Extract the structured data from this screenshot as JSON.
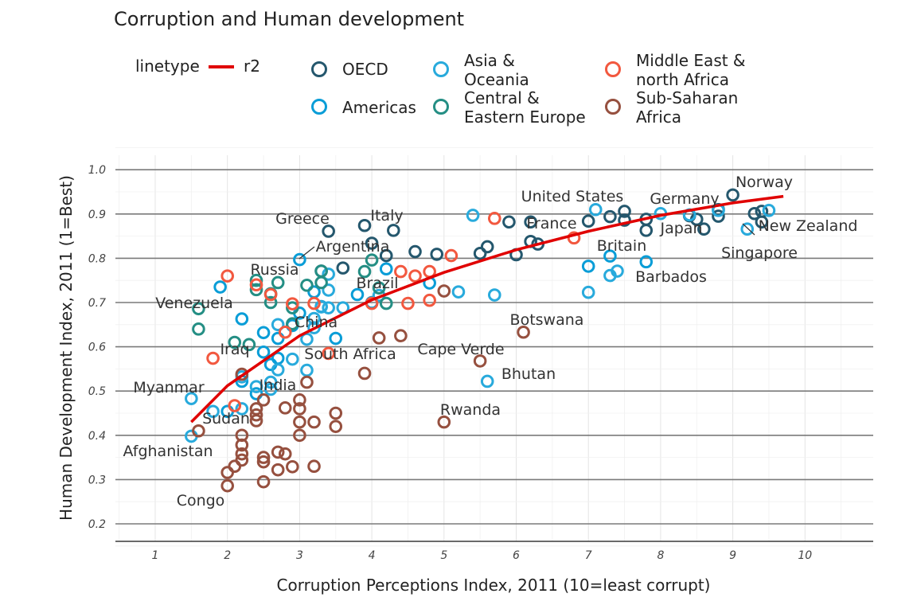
{
  "chart_data": {
    "type": "scatter",
    "title": "Corruption and Human development",
    "xlabel": "Corruption Perceptions Index, 2011 (10=least corrupt)",
    "ylabel": "Human Development Index, 2011 (1=Best)",
    "xlim": [
      0.5,
      11
    ],
    "ylim": [
      0.15,
      1.05
    ],
    "xticks": [
      "1",
      "2",
      "3",
      "4",
      "5",
      "6",
      "7",
      "8",
      "9",
      "10"
    ],
    "yticks": [
      "0.2",
      "0.3",
      "0.4",
      "0.5",
      "0.6",
      "0.7",
      "0.8",
      "0.9",
      "1.0"
    ],
    "legend": {
      "linetype_title": "linetype",
      "linetype_entry": "r2",
      "line_color": "#e00000",
      "regions": [
        {
          "key": "OECD",
          "label": "OECD",
          "color": "#24576d"
        },
        {
          "key": "Americas",
          "label": "Americas",
          "color": "#099dd7"
        },
        {
          "key": "Asia",
          "label": "Asia &\nOceania",
          "color": "#28aadc"
        },
        {
          "key": "CEE",
          "label": "Central &\nEastern Europe",
          "color": "#248e84"
        },
        {
          "key": "MENA",
          "label": "Middle East &\nnorth Africa",
          "color": "#f2583f"
        },
        {
          "key": "SSA",
          "label": "Sub-Saharan\nAfrica",
          "color": "#96503f"
        }
      ]
    },
    "series": [
      {
        "name": "OECD",
        "points": [
          [
            3.4,
            0.861
          ],
          [
            3.9,
            0.874
          ],
          [
            4.3,
            0.863
          ],
          [
            4.0,
            0.834
          ],
          [
            4.2,
            0.806
          ],
          [
            4.6,
            0.815
          ],
          [
            4.9,
            0.809
          ],
          [
            5.5,
            0.811
          ],
          [
            5.6,
            0.826
          ],
          [
            6.0,
            0.808
          ],
          [
            6.2,
            0.838
          ],
          [
            6.3,
            0.832
          ],
          [
            5.9,
            0.882
          ],
          [
            6.2,
            0.882
          ],
          [
            7.0,
            0.884
          ],
          [
            7.3,
            0.894
          ],
          [
            7.5,
            0.886
          ],
          [
            7.5,
            0.906
          ],
          [
            7.8,
            0.888
          ],
          [
            7.8,
            0.863
          ],
          [
            8.4,
            0.896
          ],
          [
            8.5,
            0.888
          ],
          [
            8.6,
            0.866
          ],
          [
            8.8,
            0.895
          ],
          [
            8.8,
            0.91
          ],
          [
            9.0,
            0.943
          ],
          [
            9.3,
            0.901
          ],
          [
            9.4,
            0.882
          ],
          [
            9.4,
            0.906
          ],
          [
            3.6,
            0.778
          ],
          [
            3.3,
            0.771
          ]
        ]
      },
      {
        "name": "Americas",
        "points": [
          [
            1.9,
            0.735
          ],
          [
            2.2,
            0.663
          ],
          [
            2.2,
            0.522
          ],
          [
            2.4,
            0.494
          ],
          [
            2.5,
            0.588
          ],
          [
            2.5,
            0.632
          ],
          [
            2.6,
            0.56
          ],
          [
            2.7,
            0.574
          ],
          [
            2.7,
            0.619
          ],
          [
            2.9,
            0.648
          ],
          [
            3.0,
            0.797
          ],
          [
            3.0,
            0.676
          ],
          [
            3.2,
            0.724
          ],
          [
            3.3,
            0.691
          ],
          [
            3.5,
            0.619
          ],
          [
            3.8,
            0.718
          ],
          [
            4.0,
            0.7
          ],
          [
            4.2,
            0.776
          ],
          [
            4.8,
            0.744
          ],
          [
            7.0,
            0.782
          ],
          [
            7.8,
            0.792
          ],
          [
            7.3,
            0.805
          ],
          [
            2.0,
            0.454
          ]
        ]
      },
      {
        "name": "Asia",
        "points": [
          [
            1.5,
            0.398
          ],
          [
            1.5,
            0.483
          ],
          [
            1.8,
            0.454
          ],
          [
            2.2,
            0.46
          ],
          [
            2.2,
            0.532
          ],
          [
            2.4,
            0.51
          ],
          [
            2.6,
            0.504
          ],
          [
            2.6,
            0.52
          ],
          [
            2.7,
            0.548
          ],
          [
            2.9,
            0.572
          ],
          [
            3.1,
            0.547
          ],
          [
            3.1,
            0.617
          ],
          [
            3.2,
            0.643
          ],
          [
            3.3,
            0.69
          ],
          [
            3.4,
            0.688
          ],
          [
            3.4,
            0.728
          ],
          [
            3.6,
            0.688
          ],
          [
            4.1,
            0.716
          ],
          [
            5.2,
            0.724
          ],
          [
            5.7,
            0.717
          ],
          [
            5.6,
            0.522
          ],
          [
            7.0,
            0.723
          ],
          [
            7.3,
            0.761
          ],
          [
            7.4,
            0.771
          ],
          [
            5.4,
            0.897
          ],
          [
            7.1,
            0.91
          ],
          [
            8.0,
            0.901
          ],
          [
            8.4,
            0.898
          ],
          [
            8.8,
            0.908
          ],
          [
            9.2,
            0.866
          ],
          [
            9.5,
            0.908
          ],
          [
            3.4,
            0.764
          ],
          [
            3.2,
            0.664
          ],
          [
            2.7,
            0.65
          ]
        ]
      },
      {
        "name": "CEE",
        "points": [
          [
            1.6,
            0.64
          ],
          [
            1.6,
            0.686
          ],
          [
            2.1,
            0.61
          ],
          [
            2.3,
            0.605
          ],
          [
            2.4,
            0.75
          ],
          [
            2.4,
            0.729
          ],
          [
            2.6,
            0.7
          ],
          [
            2.7,
            0.745
          ],
          [
            2.9,
            0.688
          ],
          [
            3.1,
            0.739
          ],
          [
            3.3,
            0.745
          ],
          [
            3.3,
            0.771
          ],
          [
            3.9,
            0.77
          ],
          [
            4.0,
            0.796
          ],
          [
            4.1,
            0.733
          ],
          [
            4.2,
            0.698
          ],
          [
            2.6,
            0.72
          ],
          [
            2.9,
            0.652
          ]
        ]
      },
      {
        "name": "MENA",
        "points": [
          [
            1.8,
            0.574
          ],
          [
            2.0,
            0.76
          ],
          [
            2.4,
            0.74
          ],
          [
            2.6,
            0.718
          ],
          [
            2.8,
            0.633
          ],
          [
            2.9,
            0.697
          ],
          [
            3.2,
            0.698
          ],
          [
            3.4,
            0.585
          ],
          [
            4.0,
            0.698
          ],
          [
            4.4,
            0.77
          ],
          [
            4.6,
            0.76
          ],
          [
            4.8,
            0.705
          ],
          [
            4.8,
            0.77
          ],
          [
            5.1,
            0.806
          ],
          [
            5.7,
            0.89
          ],
          [
            6.8,
            0.846
          ],
          [
            4.5,
            0.698
          ],
          [
            2.1,
            0.467
          ]
        ]
      },
      {
        "name": "SSA",
        "points": [
          [
            1.6,
            0.41
          ],
          [
            2.0,
            0.316
          ],
          [
            2.0,
            0.286
          ],
          [
            2.1,
            0.33
          ],
          [
            2.2,
            0.344
          ],
          [
            2.2,
            0.358
          ],
          [
            2.2,
            0.378
          ],
          [
            2.2,
            0.4
          ],
          [
            2.4,
            0.433
          ],
          [
            2.4,
            0.446
          ],
          [
            2.4,
            0.46
          ],
          [
            2.5,
            0.295
          ],
          [
            2.5,
            0.34
          ],
          [
            2.5,
            0.35
          ],
          [
            2.7,
            0.322
          ],
          [
            2.7,
            0.362
          ],
          [
            2.8,
            0.358
          ],
          [
            2.9,
            0.329
          ],
          [
            3.0,
            0.4
          ],
          [
            3.0,
            0.43
          ],
          [
            3.0,
            0.46
          ],
          [
            3.0,
            0.48
          ],
          [
            3.1,
            0.52
          ],
          [
            3.2,
            0.43
          ],
          [
            3.2,
            0.33
          ],
          [
            3.5,
            0.42
          ],
          [
            3.5,
            0.45
          ],
          [
            3.9,
            0.54
          ],
          [
            4.1,
            0.62
          ],
          [
            4.4,
            0.625
          ],
          [
            5.0,
            0.43
          ],
          [
            5.5,
            0.568
          ],
          [
            6.1,
            0.633
          ],
          [
            5.0,
            0.726
          ],
          [
            2.2,
            0.538
          ],
          [
            2.5,
            0.48
          ],
          [
            2.8,
            0.462
          ]
        ]
      }
    ],
    "trend_line": {
      "name": "r2",
      "x": [
        1.5,
        2,
        3,
        4,
        5,
        6,
        7,
        8,
        9,
        9.7
      ],
      "y": [
        0.43,
        0.512,
        0.625,
        0.706,
        0.768,
        0.819,
        0.861,
        0.897,
        0.925,
        0.94
      ]
    },
    "annotations": [
      {
        "text": "Norway",
        "x": 9.0,
        "y": 0.943
      },
      {
        "text": "Germany",
        "x": 8.0,
        "y": 0.905
      },
      {
        "text": "United States",
        "x": 7.1,
        "y": 0.91
      },
      {
        "text": "France",
        "x": 7.0,
        "y": 0.884
      },
      {
        "text": "Japan",
        "x": 8.0,
        "y": 0.901
      },
      {
        "text": "New Zealand",
        "x": 9.5,
        "y": 0.908
      },
      {
        "text": "Singapore",
        "x": 9.2,
        "y": 0.866
      },
      {
        "text": "Britain",
        "x": 7.8,
        "y": 0.863
      },
      {
        "text": "Barbados",
        "x": 7.8,
        "y": 0.792
      },
      {
        "text": "Greece",
        "x": 3.4,
        "y": 0.861
      },
      {
        "text": "Italy",
        "x": 3.9,
        "y": 0.874
      },
      {
        "text": "Argentina",
        "x": 3.0,
        "y": 0.797
      },
      {
        "text": "Russia",
        "x": 2.4,
        "y": 0.75
      },
      {
        "text": "Brazil",
        "x": 3.8,
        "y": 0.718
      },
      {
        "text": "Venezuela",
        "x": 1.9,
        "y": 0.735
      },
      {
        "text": "China",
        "x": 2.9,
        "y": 0.648
      },
      {
        "text": "Botswana",
        "x": 6.1,
        "y": 0.633
      },
      {
        "text": "Iraq",
        "x": 1.8,
        "y": 0.574
      },
      {
        "text": "South Africa",
        "x": 3.4,
        "y": 0.585
      },
      {
        "text": "Cape Verde",
        "x": 5.5,
        "y": 0.568
      },
      {
        "text": "Bhutan",
        "x": 5.6,
        "y": 0.522
      },
      {
        "text": "Myanmar",
        "x": 1.5,
        "y": 0.483
      },
      {
        "text": "India",
        "x": 2.6,
        "y": 0.504
      },
      {
        "text": "Rwanda",
        "x": 5.0,
        "y": 0.43
      },
      {
        "text": "Sudan",
        "x": 2.1,
        "y": 0.467
      },
      {
        "text": "Afghanistan",
        "x": 1.5,
        "y": 0.398
      },
      {
        "text": "Congo",
        "x": 2.0,
        "y": 0.286
      }
    ]
  }
}
